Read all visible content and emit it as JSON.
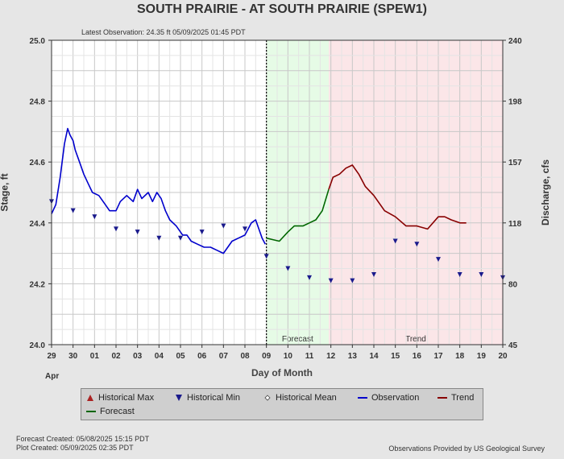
{
  "title": "SOUTH PRAIRIE - AT SOUTH PRAIRIE  (SPEW1)",
  "latest_observation": "Latest Observation: 24.35 ft 05/09/2025 01:45 PDT",
  "footer": {
    "forecast_created": "Forecast Created: 05/08/2025 15:15 PDT",
    "plot_created": "Plot Created: 05/09/2025 02:35 PDT",
    "source": "Observations Provided by US Geological Survey"
  },
  "legend": {
    "historical_max": "Historical Max",
    "historical_min": "Historical Min",
    "historical_mean": "Historical Mean",
    "observation": "Observation",
    "trend": "Trend",
    "forecast": "Forecast"
  },
  "colors": {
    "observation": "#0000cc",
    "forecast": "#006600",
    "trend": "#880000",
    "forecast_bg": "#e6fbe6",
    "trend_bg": "#fbe6e8",
    "min_marker": "#1a1a8c"
  },
  "chart_data": {
    "type": "line",
    "title": "SOUTH PRAIRIE - AT SOUTH PRAIRIE  (SPEW1)",
    "xlabel": "Day of Month",
    "ylabel": "Stage, ft",
    "y2label": "Discharge, cfs",
    "month_label": "Apr",
    "x_ticks": [
      "29",
      "30",
      "01",
      "02",
      "03",
      "04",
      "05",
      "06",
      "07",
      "08",
      "09",
      "10",
      "11",
      "12",
      "13",
      "14",
      "15",
      "16",
      "17",
      "18",
      "19",
      "20"
    ],
    "xlim": [
      0,
      21
    ],
    "ylim": [
      24.0,
      25.0
    ],
    "y_ticks": [
      "24.0",
      "24.2",
      "24.4",
      "24.6",
      "24.8",
      "25.0"
    ],
    "y2_ticks": [
      "45",
      "80",
      "118",
      "157",
      "198",
      "240"
    ],
    "grid": true,
    "legend_position": "bottom",
    "regions": [
      {
        "label": "Forecast",
        "x0": 10.0,
        "x1": 12.9
      },
      {
        "label": "Trend",
        "x0": 12.9,
        "x1": 21.0
      }
    ],
    "current_time_x": 10.0,
    "series": [
      {
        "name": "Observation",
        "x": [
          0,
          0.2,
          0.4,
          0.6,
          0.75,
          0.85,
          1.0,
          1.1,
          1.3,
          1.5,
          1.7,
          1.9,
          2.2,
          2.5,
          2.7,
          3.0,
          3.2,
          3.5,
          3.8,
          4.0,
          4.2,
          4.5,
          4.7,
          4.9,
          5.1,
          5.3,
          5.5,
          5.8,
          6.1,
          6.3,
          6.5,
          6.8,
          7.1,
          7.4,
          7.7,
          8.0,
          8.4,
          8.7,
          9.0,
          9.3,
          9.5,
          9.65,
          9.8,
          9.95
        ],
        "y": [
          24.43,
          24.46,
          24.55,
          24.66,
          24.71,
          24.69,
          24.67,
          24.64,
          24.6,
          24.56,
          24.53,
          24.5,
          24.49,
          24.46,
          24.44,
          24.44,
          24.47,
          24.49,
          24.47,
          24.51,
          24.48,
          24.5,
          24.47,
          24.5,
          24.48,
          24.44,
          24.41,
          24.39,
          24.36,
          24.36,
          24.34,
          24.33,
          24.32,
          24.32,
          24.31,
          24.3,
          24.34,
          24.35,
          24.36,
          24.4,
          24.41,
          24.38,
          24.35,
          24.33
        ]
      },
      {
        "name": "Forecast",
        "x": [
          10.0,
          10.3,
          10.6,
          11.0,
          11.3,
          11.7,
          12.0,
          12.3,
          12.6,
          12.9
        ],
        "y": [
          24.35,
          24.345,
          24.34,
          24.37,
          24.39,
          24.39,
          24.4,
          24.41,
          24.44,
          24.51
        ]
      },
      {
        "name": "Trend",
        "x": [
          12.9,
          13.1,
          13.4,
          13.7,
          14.0,
          14.3,
          14.6,
          15.0,
          15.5,
          16.0,
          16.5,
          17.0,
          17.5,
          18.0,
          18.3,
          18.6,
          19.0,
          19.3
        ],
        "y": [
          24.51,
          24.55,
          24.56,
          24.58,
          24.59,
          24.56,
          24.52,
          24.49,
          24.44,
          24.42,
          24.39,
          24.39,
          24.38,
          24.42,
          24.42,
          24.41,
          24.4,
          24.4
        ]
      },
      {
        "name": "Historical Min",
        "x": [
          0,
          1,
          2,
          3,
          4,
          5,
          6,
          7,
          8,
          9,
          10,
          11,
          12,
          13,
          14,
          15,
          16,
          17,
          18,
          19,
          20,
          21
        ],
        "y": [
          24.47,
          24.44,
          24.42,
          24.38,
          24.37,
          24.35,
          24.35,
          24.37,
          24.39,
          24.38,
          24.29,
          24.25,
          24.22,
          24.21,
          24.21,
          24.23,
          24.34,
          24.33,
          24.28,
          24.23,
          24.23,
          24.22
        ]
      }
    ]
  }
}
